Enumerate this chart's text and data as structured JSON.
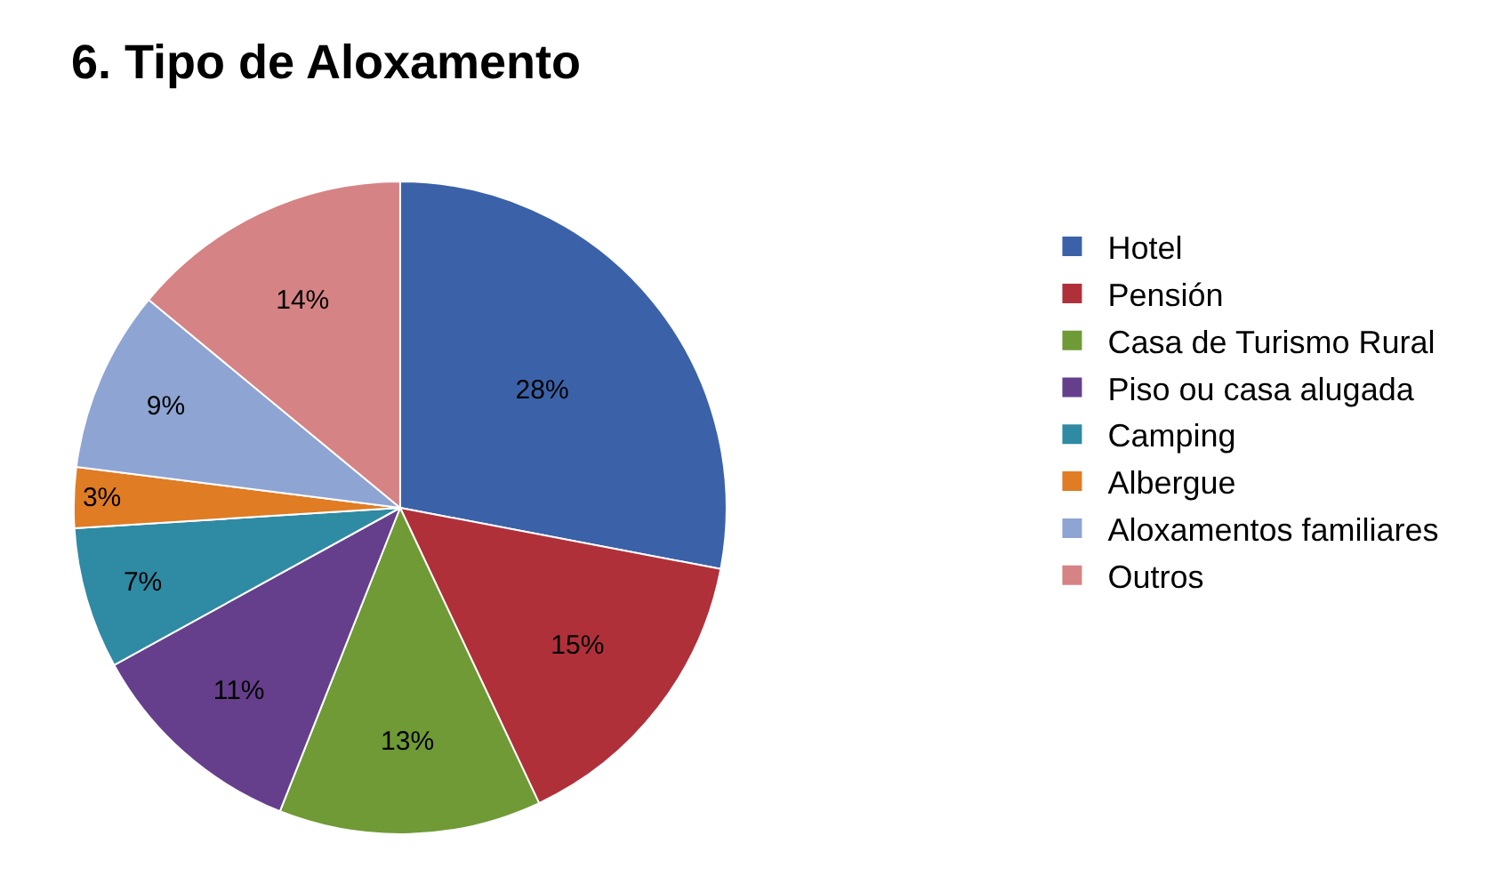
{
  "chart_data": {
    "type": "pie",
    "title": "6. Tipo de Aloxamento",
    "categories": [
      "Hotel",
      "Pensión",
      "Casa de Turismo Rural",
      "Piso ou casa alugada",
      "Camping",
      "Albergue",
      "Aloxamentos familiares",
      "Outros"
    ],
    "values": [
      28,
      15,
      13,
      11,
      7,
      3,
      9,
      14
    ],
    "colors": [
      "#3b62a8",
      "#b0303a",
      "#6f9a35",
      "#653f8c",
      "#2f8aa3",
      "#e07c24",
      "#8ea4d2",
      "#d58384"
    ],
    "value_labels": [
      "28%",
      "15%",
      "13%",
      "11%",
      "7%",
      "3%",
      "9%",
      "14%"
    ],
    "legend": "right"
  }
}
